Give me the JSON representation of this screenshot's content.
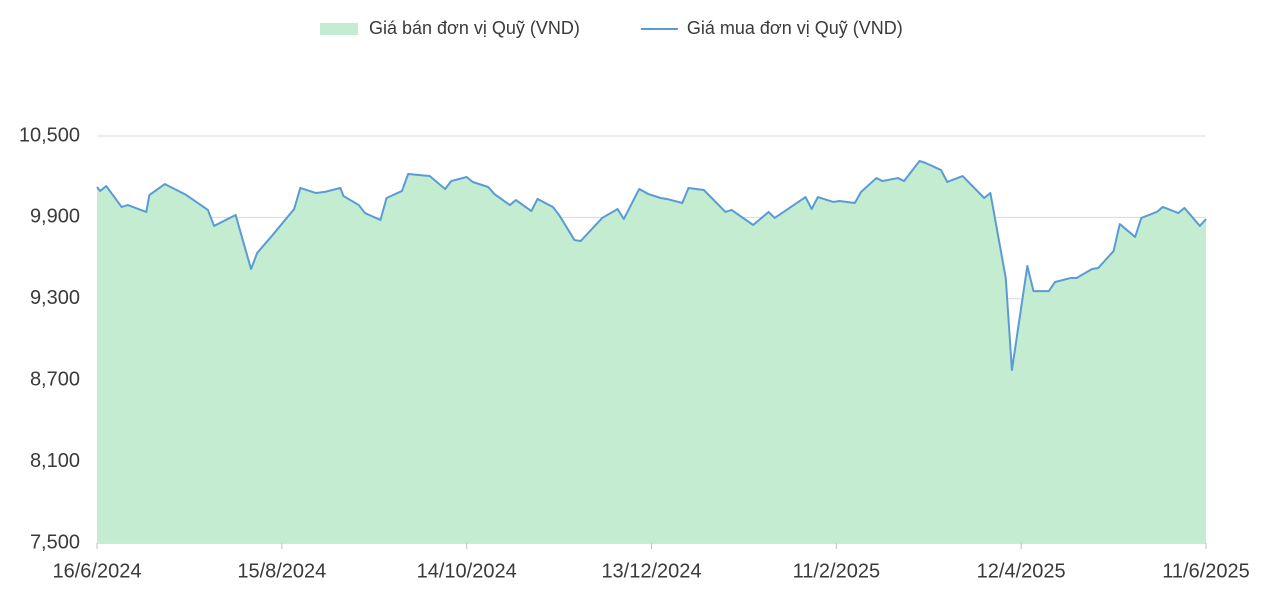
{
  "chart_data": {
    "type": "area-line",
    "x": [
      "16/6/2024",
      "17/6/2024",
      "19/6/2024",
      "24/6/2024",
      "26/6/2024",
      "2/7/2024",
      "3/7/2024",
      "8/7/2024",
      "15/7/2024",
      "22/7/2024",
      "24/7/2024",
      "31/7/2024",
      "5/8/2024",
      "7/8/2024",
      "12/8/2024",
      "19/8/2024",
      "21/8/2024",
      "26/8/2024",
      "29/8/2024",
      "3/9/2024",
      "4/9/2024",
      "9/9/2024",
      "11/9/2024",
      "16/9/2024",
      "18/9/2024",
      "23/9/2024",
      "25/9/2024",
      "2/10/2024",
      "7/10/2024",
      "9/10/2024",
      "14/10/2024",
      "16/10/2024",
      "21/10/2024",
      "23/10/2024",
      "28/10/2024",
      "30/10/2024",
      "4/11/2024",
      "6/11/2024",
      "11/11/2024",
      "13/11/2024",
      "18/11/2024",
      "20/11/2024",
      "27/11/2024",
      "2/12/2024",
      "4/12/2024",
      "9/12/2024",
      "12/12/2024",
      "16/12/2024",
      "18/12/2024",
      "23/12/2024",
      "25/12/2024",
      "30/12/2024",
      "6/1/2025",
      "8/1/2025",
      "15/1/2025",
      "20/1/2025",
      "22/1/2025",
      "1/2/2025",
      "3/2/2025",
      "5/2/2025",
      "10/2/2025",
      "12/2/2025",
      "17/2/2025",
      "19/2/2025",
      "24/2/2025",
      "26/2/2025",
      "3/3/2025",
      "5/3/2025",
      "10/3/2025",
      "12/3/2025",
      "17/3/2025",
      "19/3/2025",
      "24/3/2025",
      "31/3/2025",
      "2/4/2025",
      "7/4/2025",
      "9/4/2025",
      "14/4/2025",
      "16/4/2025",
      "21/4/2025",
      "23/4/2025",
      "28/4/2025",
      "30/4/2025",
      "5/5/2025",
      "7/5/2025",
      "12/5/2025",
      "14/5/2025",
      "19/5/2025",
      "21/5/2025",
      "26/5/2025",
      "28/5/2025",
      "2/6/2025",
      "4/6/2025",
      "9/6/2025",
      "11/6/2025"
    ],
    "series": [
      {
        "name": "Giá bán đơn vị Quỹ (VND)",
        "type": "area",
        "color": "#c3ecd0",
        "values": [
          10124,
          10095,
          10131,
          9977,
          9991,
          9940,
          10065,
          10146,
          10065,
          9955,
          9837,
          9918,
          9520,
          9638,
          9770,
          9962,
          10117,
          10080,
          10088,
          10117,
          10058,
          9991,
          9932,
          9881,
          10043,
          10095,
          10220,
          10205,
          10109,
          10168,
          10198,
          10161,
          10124,
          10072,
          9991,
          10028,
          9947,
          10036,
          9977,
          9918,
          9733,
          9726,
          9896,
          9962,
          9888,
          10109,
          10072,
          10043,
          10036,
          10006,
          10117,
          10102,
          9940,
          9955,
          9844,
          9940,
          9896,
          10050,
          9962,
          10050,
          10014,
          10021,
          10006,
          10087,
          10190,
          10168,
          10190,
          10168,
          10316,
          10301,
          10249,
          10161,
          10205,
          10043,
          10080,
          9453,
          8775,
          9542,
          9357,
          9357,
          9424,
          9453,
          9453,
          9520,
          9527,
          9652,
          9851,
          9756,
          9896,
          9940,
          9977,
          9932,
          9970,
          9837,
          9888
        ]
      },
      {
        "name": "Giá mua đơn vị Quỹ (VND)",
        "type": "line",
        "color": "#5b9bd5",
        "values": [
          10124,
          10095,
          10131,
          9977,
          9991,
          9940,
          10065,
          10146,
          10065,
          9955,
          9837,
          9918,
          9520,
          9638,
          9770,
          9962,
          10117,
          10080,
          10088,
          10117,
          10058,
          9991,
          9932,
          9881,
          10043,
          10095,
          10220,
          10205,
          10109,
          10168,
          10198,
          10161,
          10124,
          10072,
          9991,
          10028,
          9947,
          10036,
          9977,
          9918,
          9733,
          9726,
          9896,
          9962,
          9888,
          10109,
          10072,
          10043,
          10036,
          10006,
          10117,
          10102,
          9940,
          9955,
          9844,
          9940,
          9896,
          10050,
          9962,
          10050,
          10014,
          10021,
          10006,
          10087,
          10190,
          10168,
          10190,
          10168,
          10316,
          10301,
          10249,
          10161,
          10205,
          10043,
          10080,
          9453,
          8775,
          9542,
          9357,
          9357,
          9424,
          9453,
          9453,
          9520,
          9527,
          9652,
          9851,
          9756,
          9896,
          9940,
          9977,
          9932,
          9970,
          9837,
          9888
        ]
      }
    ],
    "xlim": [
      "16/6/2024",
      "11/6/2025"
    ],
    "xticks": [
      "16/6/2024",
      "15/8/2024",
      "14/10/2024",
      "13/12/2024",
      "11/2/2025",
      "12/4/2025",
      "11/6/2025"
    ],
    "ylim": [
      7500,
      10500
    ],
    "yticks": [
      {
        "value": 7500,
        "label": "7,500"
      },
      {
        "value": 8100,
        "label": "8,100"
      },
      {
        "value": 8700,
        "label": "8,700"
      },
      {
        "value": 9300,
        "label": "9,300"
      },
      {
        "value": 9900,
        "label": "9,900"
      },
      {
        "value": 10500,
        "label": "10,500"
      }
    ],
    "grid": true,
    "legend": "top"
  }
}
